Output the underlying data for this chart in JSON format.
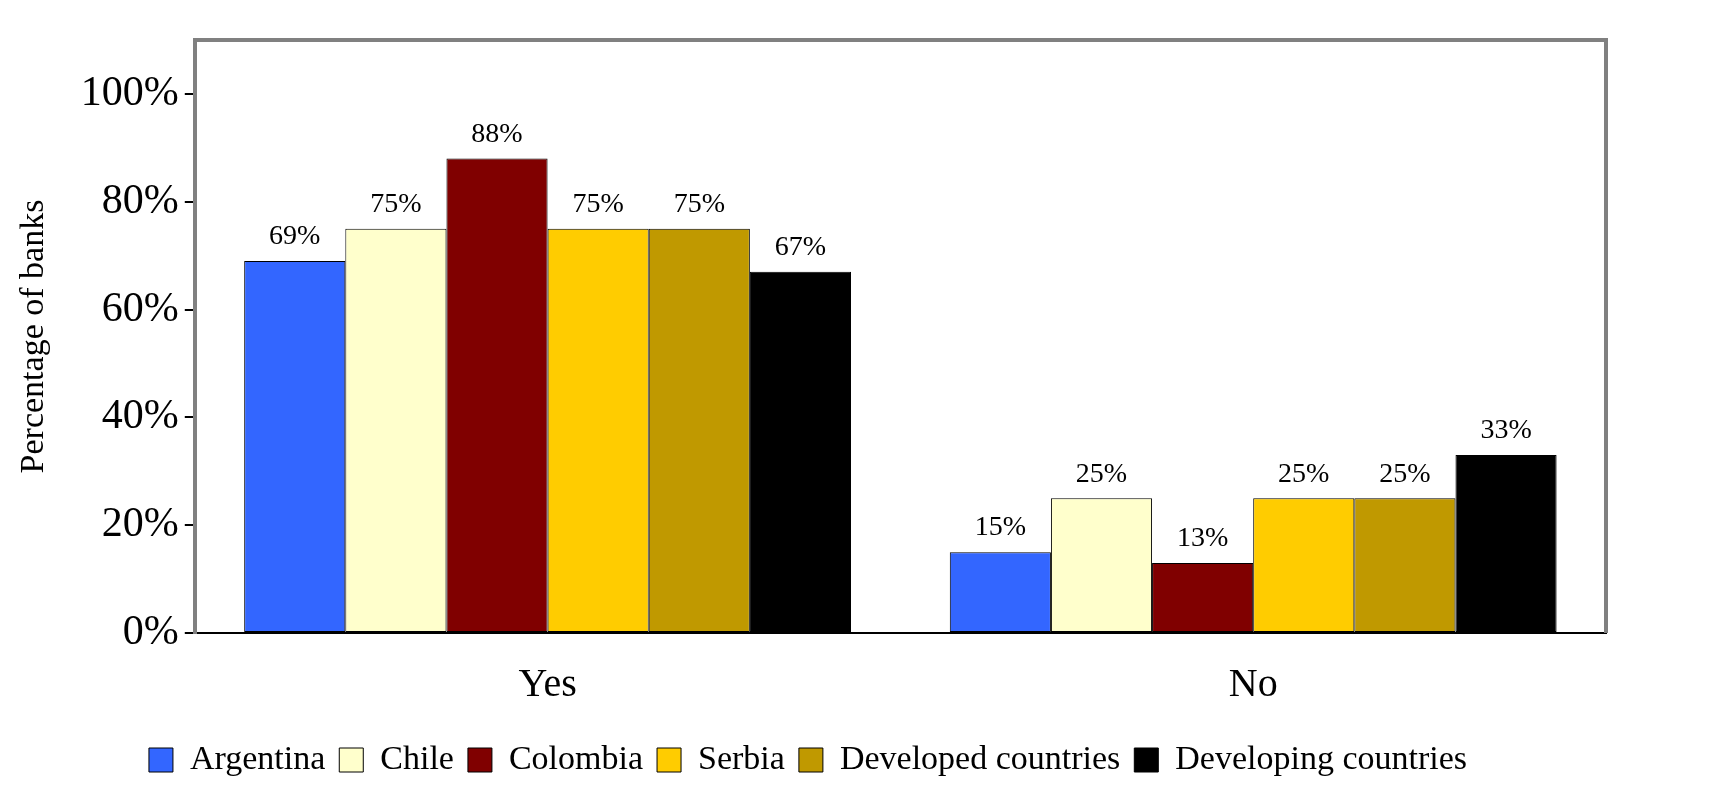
{
  "chart_data": {
    "type": "bar",
    "ylabel": "Percentage of banks",
    "categories": [
      "Yes",
      "No"
    ],
    "series": [
      {
        "name": "Argentina",
        "color": "#3366ff",
        "values": [
          69,
          15
        ],
        "value_labels": [
          "69%",
          "15%"
        ]
      },
      {
        "name": "Chile",
        "color": "#ffffcc",
        "values": [
          75,
          25
        ],
        "value_labels": [
          "75%",
          "25%"
        ]
      },
      {
        "name": "Colombia",
        "color": "#800000",
        "values": [
          88,
          13
        ],
        "value_labels": [
          "88%",
          "13%"
        ]
      },
      {
        "name": "Serbia",
        "color": "#ffcc00",
        "values": [
          75,
          25
        ],
        "value_labels": [
          "75%",
          "25%"
        ]
      },
      {
        "name": "Developed countries",
        "color": "#c09900",
        "values": [
          75,
          25
        ],
        "value_labels": [
          "75%",
          "25%"
        ]
      },
      {
        "name": "Developing countries",
        "color": "#000000",
        "values": [
          67,
          33
        ],
        "value_labels": [
          "67%",
          "33%"
        ]
      }
    ],
    "ylim": [
      0,
      110
    ],
    "yticks": [
      {
        "value": 0,
        "label": "0%"
      },
      {
        "value": 20,
        "label": "20%"
      },
      {
        "value": 40,
        "label": "40%"
      },
      {
        "value": 60,
        "label": "60%"
      },
      {
        "value": 80,
        "label": "80%"
      },
      {
        "value": 100,
        "label": "100%"
      }
    ],
    "grid": false,
    "legend": "bottom"
  }
}
